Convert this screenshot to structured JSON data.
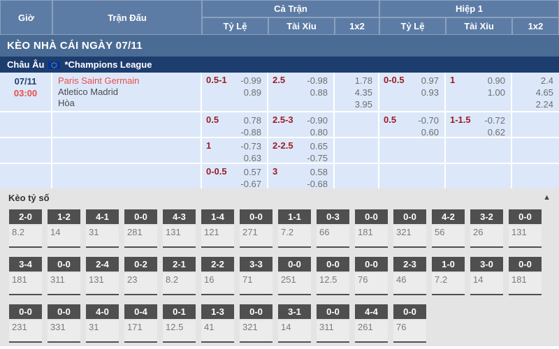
{
  "header": {
    "col_time": "Giờ",
    "col_match": "Trận Đấu",
    "group_full": "Cả Trận",
    "group_half": "Hiệp 1",
    "sub_handicap": "Tỷ Lệ",
    "sub_overunder": "Tài Xỉu",
    "sub_1x2": "1x2"
  },
  "banner": {
    "title": "KÈO NHÀA CÁI NGÀY 07/11"
  },
  "banner_fixed": {
    "title": "KÈO NHÀ CÁI NGÀY 07/11"
  },
  "league": {
    "region": "Châu Âu",
    "name": "*Champions League"
  },
  "match": {
    "date": "07/11",
    "time": "03:00",
    "home": "Paris Saint Germain",
    "away": "Atletico Madrid",
    "draw_label": "Hòa"
  },
  "colors": {
    "header_bg": "#5d7ca5",
    "banner_bg": "#4a6b93",
    "league_bg": "#1e3d6f",
    "row_bg": "#dce8f9",
    "handicap_red": "#9c1c24",
    "team_red": "#ea4c4c",
    "score_head_bg": "#4f4f4f"
  },
  "odds_rows": [
    {
      "ft_hdp": {
        "line": "0.5-1",
        "top": "-0.99",
        "bot": "0.89"
      },
      "ft_ou": {
        "line": "2.5",
        "top": "-0.98",
        "bot": "0.88"
      },
      "ft_1x2": [
        "1.78",
        "4.35",
        "3.95"
      ],
      "h1_hdp": {
        "line": "0-0.5",
        "top": "0.97",
        "bot": "0.93"
      },
      "h1_ou": {
        "line": "1",
        "top": "0.90",
        "bot": "1.00"
      },
      "h1_1x2": [
        "2.4",
        "4.65",
        "2.24"
      ]
    },
    {
      "ft_hdp": {
        "line": "0.5",
        "top": "0.78",
        "bot": "-0.88"
      },
      "ft_ou": {
        "line": "2.5-3",
        "top": "-0.90",
        "bot": "0.80"
      },
      "ft_1x2": [],
      "h1_hdp": {
        "line": "0.5",
        "top": "-0.70",
        "bot": "0.60"
      },
      "h1_ou": {
        "line": "1-1.5",
        "top": "-0.72",
        "bot": "0.62"
      },
      "h1_1x2": []
    },
    {
      "ft_hdp": {
        "line": "1",
        "top": "-0.73",
        "bot": "0.63"
      },
      "ft_ou": {
        "line": "2-2.5",
        "top": "0.65",
        "bot": "-0.75"
      },
      "ft_1x2": [],
      "h1_hdp": null,
      "h1_ou": null,
      "h1_1x2": []
    },
    {
      "ft_hdp": {
        "line": "0-0.5",
        "top": "0.57",
        "bot": "-0.67"
      },
      "ft_ou": {
        "line": "3",
        "top": "0.58",
        "bot": "-0.68"
      },
      "ft_1x2": [],
      "h1_hdp": null,
      "h1_ou": null,
      "h1_1x2": []
    }
  ],
  "score_section": {
    "title": "Kèo tỷ số",
    "collapse_icon": "▲",
    "rows": [
      [
        {
          "score": "2-0",
          "odds": "8.2"
        },
        {
          "score": "1-2",
          "odds": "14"
        },
        {
          "score": "4-1",
          "odds": "31"
        },
        {
          "score": "0-0",
          "odds": "281"
        },
        {
          "score": "4-3",
          "odds": "131"
        },
        {
          "score": "1-4",
          "odds": "121"
        },
        {
          "score": "0-0",
          "odds": "271"
        },
        {
          "score": "1-1",
          "odds": "7.2"
        },
        {
          "score": "0-3",
          "odds": "66"
        },
        {
          "score": "0-0",
          "odds": "181"
        },
        {
          "score": "0-0",
          "odds": "321"
        },
        {
          "score": "4-2",
          "odds": "56"
        },
        {
          "score": "3-2",
          "odds": "26"
        },
        {
          "score": "0-0",
          "odds": "131"
        }
      ],
      [
        {
          "score": "3-4",
          "odds": "181"
        },
        {
          "score": "0-0",
          "odds": "311"
        },
        {
          "score": "2-4",
          "odds": "131"
        },
        {
          "score": "0-2",
          "odds": "23"
        },
        {
          "score": "2-1",
          "odds": "8.2"
        },
        {
          "score": "2-2",
          "odds": "16"
        },
        {
          "score": "3-3",
          "odds": "71"
        },
        {
          "score": "0-0",
          "odds": "251"
        },
        {
          "score": "0-0",
          "odds": "12.5"
        },
        {
          "score": "0-0",
          "odds": "76"
        },
        {
          "score": "2-3",
          "odds": "46"
        },
        {
          "score": "1-0",
          "odds": "7.2"
        },
        {
          "score": "3-0",
          "odds": "14"
        },
        {
          "score": "0-0",
          "odds": "181"
        }
      ],
      [
        {
          "score": "0-0",
          "odds": "231"
        },
        {
          "score": "0-0",
          "odds": "331"
        },
        {
          "score": "4-0",
          "odds": "31"
        },
        {
          "score": "0-4",
          "odds": "171"
        },
        {
          "score": "0-1",
          "odds": "12.5"
        },
        {
          "score": "1-3",
          "odds": "41"
        },
        {
          "score": "0-0",
          "odds": "321"
        },
        {
          "score": "3-1",
          "odds": "14"
        },
        {
          "score": "0-0",
          "odds": "311"
        },
        {
          "score": "4-4",
          "odds": "261"
        },
        {
          "score": "0-0",
          "odds": "76"
        }
      ]
    ]
  }
}
